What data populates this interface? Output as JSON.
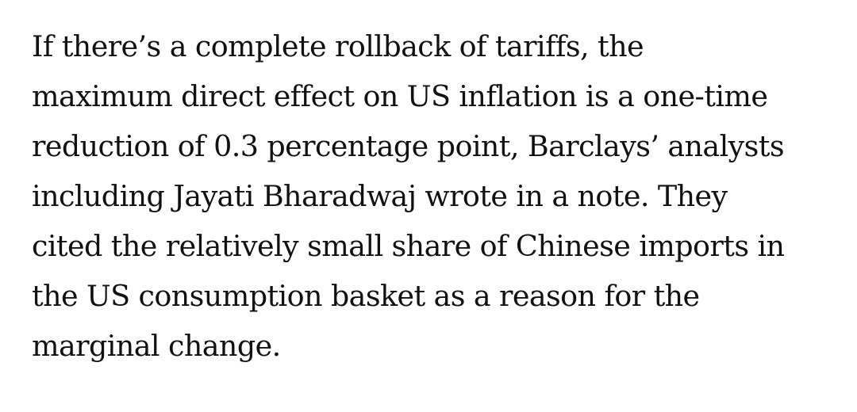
{
  "article": {
    "paragraph_lines": [
      "If there’s a complete rollback of tariffs, the",
      "maximum direct effect on US inflation is a one-time",
      "reduction of 0.3 percentage point, Barclays’ analysts",
      "including Jayati Bharadwaj wrote in a note. They",
      "cited the relatively small share of Chinese imports in",
      "the US consumption basket as a reason for the",
      "marginal change."
    ]
  }
}
